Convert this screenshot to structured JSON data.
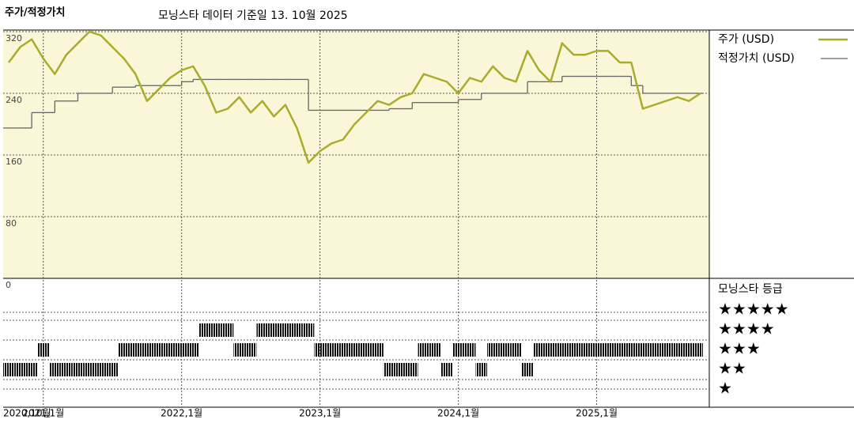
{
  "chart_data": {
    "type": "line",
    "title": "주가/적정가치",
    "subtitle": "모닝스타 데이터 기준일 13. 10월 2025",
    "x": [
      "2020-10",
      "2020-11",
      "2020-12",
      "2021-01",
      "2021-02",
      "2021-03",
      "2021-04",
      "2021-05",
      "2021-06",
      "2021-07",
      "2021-08",
      "2021-09",
      "2021-10",
      "2021-11",
      "2021-12",
      "2022-01",
      "2022-02",
      "2022-03",
      "2022-04",
      "2022-05",
      "2022-06",
      "2022-07",
      "2022-08",
      "2022-09",
      "2022-10",
      "2022-11",
      "2022-12",
      "2023-01",
      "2023-02",
      "2023-03",
      "2023-04",
      "2023-05",
      "2023-06",
      "2023-07",
      "2023-08",
      "2023-09",
      "2023-10",
      "2023-11",
      "2023-12",
      "2024-01",
      "2024-02",
      "2024-03",
      "2024-04",
      "2024-05",
      "2024-06",
      "2024-07",
      "2024-08",
      "2024-09",
      "2024-10",
      "2024-11",
      "2024-12",
      "2025-01",
      "2025-02",
      "2025-03",
      "2025-04",
      "2025-05",
      "2025-06",
      "2025-07",
      "2025-08",
      "2025-09",
      "2025-10"
    ],
    "series": [
      {
        "name": "주가 (USD)",
        "color": "#a8ac2a",
        "values": [
          280,
          300,
          310,
          285,
          265,
          290,
          305,
          320,
          315,
          300,
          285,
          265,
          230,
          245,
          260,
          270,
          275,
          250,
          215,
          220,
          235,
          215,
          230,
          210,
          225,
          195,
          150,
          165,
          175,
          180,
          200,
          215,
          230,
          225,
          235,
          240,
          265,
          260,
          255,
          240,
          260,
          255,
          275,
          260,
          255,
          295,
          270,
          255,
          305,
          290,
          290,
          295,
          295,
          280,
          280,
          220,
          225,
          230,
          235,
          230,
          240
        ]
      },
      {
        "name": "적정가치 (USD)",
        "color": "#666666",
        "values": [
          195,
          195,
          215,
          215,
          230,
          230,
          240,
          240,
          240,
          248,
          248,
          250,
          250,
          250,
          250,
          255,
          258,
          258,
          258,
          258,
          258,
          258,
          258,
          258,
          258,
          258,
          218,
          218,
          218,
          218,
          218,
          218,
          218,
          220,
          220,
          228,
          228,
          228,
          228,
          232,
          232,
          240,
          240,
          240,
          240,
          255,
          255,
          255,
          262,
          262,
          262,
          262,
          262,
          262,
          250,
          240,
          240,
          240,
          240,
          240,
          240
        ]
      }
    ],
    "ylim": [
      0,
      320
    ],
    "yticks": [
      0,
      80,
      160,
      240,
      320
    ],
    "xticks": [
      {
        "value": "2020-10",
        "label": "2020,10월"
      },
      {
        "value": "2021-01",
        "label": "2021,1월"
      },
      {
        "value": "2022-01",
        "label": "2022,1월"
      },
      {
        "value": "2023-01",
        "label": "2023,1월"
      },
      {
        "value": "2024-01",
        "label": "2024,1월"
      },
      {
        "value": "2025-01",
        "label": "2025,1월"
      }
    ],
    "rating": {
      "title": "모닝스타 등급",
      "labels": [
        "★★★★★",
        "★★★★",
        "★★★",
        "★★",
        "★"
      ],
      "values": [
        2,
        2,
        2,
        3,
        2,
        2,
        2,
        2,
        2,
        2,
        3,
        3,
        3,
        3,
        3,
        3,
        3,
        4,
        4,
        4,
        3,
        3,
        4,
        4,
        4,
        4,
        4,
        3,
        3,
        3,
        3,
        3,
        3,
        2,
        2,
        2,
        3,
        3,
        2,
        3,
        3,
        2,
        3,
        3,
        3,
        2,
        3,
        3,
        3,
        3,
        3,
        3,
        3,
        3,
        3,
        3,
        3,
        3,
        3,
        3,
        3
      ]
    },
    "grid": true
  }
}
